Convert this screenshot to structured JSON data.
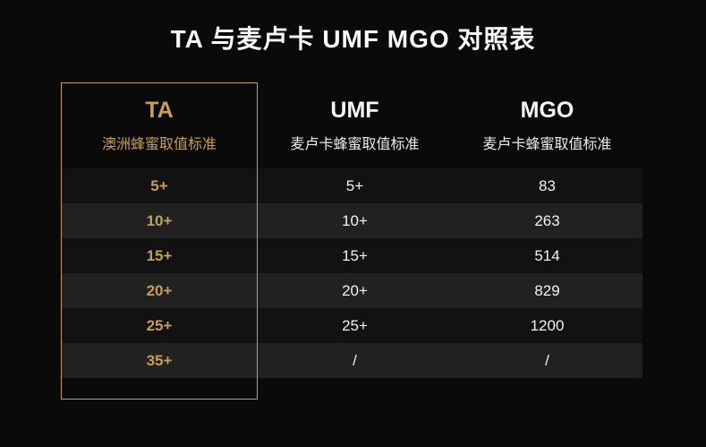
{
  "title": "TA 与麦卢卡 UMF MGO 对照表",
  "colors": {
    "accent_gold": "#c79e58",
    "background": "#0a0a0a",
    "row_dark": "#121212",
    "row_light": "#212121",
    "text": "#f2f2f2"
  },
  "table": {
    "columns": [
      {
        "label": "TA",
        "subtitle": "澳洲蜂蜜取值标准"
      },
      {
        "label": "UMF",
        "subtitle": "麦卢卡蜂蜜取值标准"
      },
      {
        "label": "MGO",
        "subtitle": "麦卢卡蜂蜜取值标准"
      }
    ],
    "rows": [
      {
        "ta": "5+",
        "umf": "5+",
        "mgo": "83"
      },
      {
        "ta": "10+",
        "umf": "10+",
        "mgo": "263"
      },
      {
        "ta": "15+",
        "umf": "15+",
        "mgo": "514"
      },
      {
        "ta": "20+",
        "umf": "20+",
        "mgo": "829"
      },
      {
        "ta": "25+",
        "umf": "25+",
        "mgo": "1200"
      },
      {
        "ta": "35+",
        "umf": "/",
        "mgo": "/"
      }
    ]
  },
  "chart_data": {
    "type": "table",
    "title": "TA 与麦卢卡 UMF MGO 对照表",
    "columns": [
      "TA 澳洲蜂蜜取值标准",
      "UMF 麦卢卡蜂蜜取值标准",
      "MGO 麦卢卡蜂蜜取值标准"
    ],
    "rows": [
      [
        "5+",
        "5+",
        "83"
      ],
      [
        "10+",
        "10+",
        "263"
      ],
      [
        "15+",
        "15+",
        "514"
      ],
      [
        "20+",
        "20+",
        "829"
      ],
      [
        "25+",
        "25+",
        "1200"
      ],
      [
        "35+",
        "/",
        "/"
      ]
    ]
  }
}
